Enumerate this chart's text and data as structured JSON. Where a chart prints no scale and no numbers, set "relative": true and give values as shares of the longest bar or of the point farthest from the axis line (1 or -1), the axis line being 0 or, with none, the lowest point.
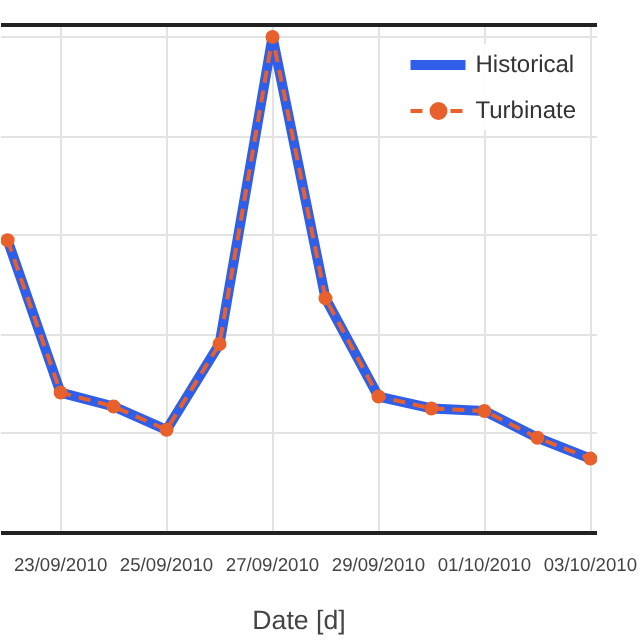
{
  "chart_data": {
    "type": "line",
    "xlabel": "Date [d]",
    "relative": true,
    "x": [
      "2010-09-22",
      "2010-09-23",
      "2010-09-24",
      "2010-09-25",
      "2010-09-26",
      "2010-09-27",
      "2010-09-28",
      "2010-09-29",
      "2010-09-30",
      "2010-10-01",
      "2010-10-02",
      "2010-10-03"
    ],
    "xlim": [
      "2010-09-21T21:00",
      "2010-10-03T03:00"
    ],
    "xticks": [
      {
        "value": "2010-09-23",
        "label": "23/09/2010"
      },
      {
        "value": "2010-09-25",
        "label": "25/09/2010"
      },
      {
        "value": "2010-09-27",
        "label": "27/09/2010"
      },
      {
        "value": "2010-09-29",
        "label": "29/09/2010"
      },
      {
        "value": "2010-10-01",
        "label": "01/10/2010"
      },
      {
        "value": "2010-10-03",
        "label": "03/10/2010"
      }
    ],
    "series": [
      {
        "name": "Historical",
        "color": "#2f5fe8",
        "line_style": "solid",
        "marker": "none",
        "values": [
          0.59,
          0.283,
          0.255,
          0.208,
          0.381,
          1,
          0.473,
          0.275,
          0.251,
          0.246,
          0.192,
          0.15
        ]
      },
      {
        "name": "Turbinate",
        "color": "#e8602c",
        "line_style": "dashed",
        "marker": "circle",
        "values": [
          0.59,
          0.283,
          0.255,
          0.208,
          0.381,
          1,
          0.473,
          0.275,
          0.251,
          0.246,
          0.192,
          0.15
        ]
      }
    ],
    "grid": true,
    "legend": "top right"
  }
}
